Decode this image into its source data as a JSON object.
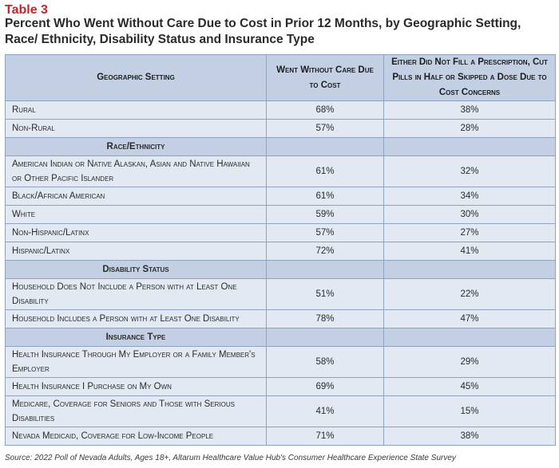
{
  "table_number": "Table 3",
  "title": "Percent Who Went Without Care Due to Cost in Prior 12 Months, by Geographic Setting, Race/ Ethnicity, Disability Status and Insurance Type",
  "columns": [
    "Geographic Setting",
    "Went Without Care Due to Cost",
    "Either Did Not Fill a Prescription, Cut Pills in Half or Skipped a Dose Due to Cost Concerns"
  ],
  "rows": {
    "rural": [
      "Rural",
      "68%",
      "38%"
    ],
    "non_rural": [
      "Non-Rural",
      "57%",
      "28%"
    ],
    "race_header": "Race/Ethnicity",
    "aian": [
      "American Indian or Native Alaskan, Asian and Native Hawaiian or Other Pacific Islander",
      "61%",
      "32%"
    ],
    "black": [
      "Black/African American",
      "61%",
      "34%"
    ],
    "white": [
      "White",
      "59%",
      "30%"
    ],
    "non_hispanic": [
      "Non-Hispanic/Latinx",
      "57%",
      "27%"
    ],
    "hispanic": [
      "Hispanic/Latinx",
      "72%",
      "41%"
    ],
    "disability_header": "Disability Status",
    "no_disability": [
      "Household Does Not Include a Person with at Least One Disability",
      "51%",
      "22%"
    ],
    "disability": [
      "Household Includes a Person with at Least One Disability",
      "78%",
      "47%"
    ],
    "insurance_header": "Insurance Type",
    "employer": [
      "Health Insurance Through My Employer or a Family Member's Employer",
      "58%",
      "29%"
    ],
    "own": [
      "Health Insurance I Purchase on My Own",
      "69%",
      "45%"
    ],
    "medicare": [
      "Medicare, Coverage for Seniors and Those with Serious Disabilities",
      "41%",
      "15%"
    ],
    "medicaid": [
      "Nevada Medicaid, Coverage for Low-Income People",
      "71%",
      "38%"
    ]
  },
  "source": "Source: 2022 Poll of Nevada Adults, Ages 18+, Altarum Healthcare Value Hub's Consumer Healthcare Experience State Survey"
}
